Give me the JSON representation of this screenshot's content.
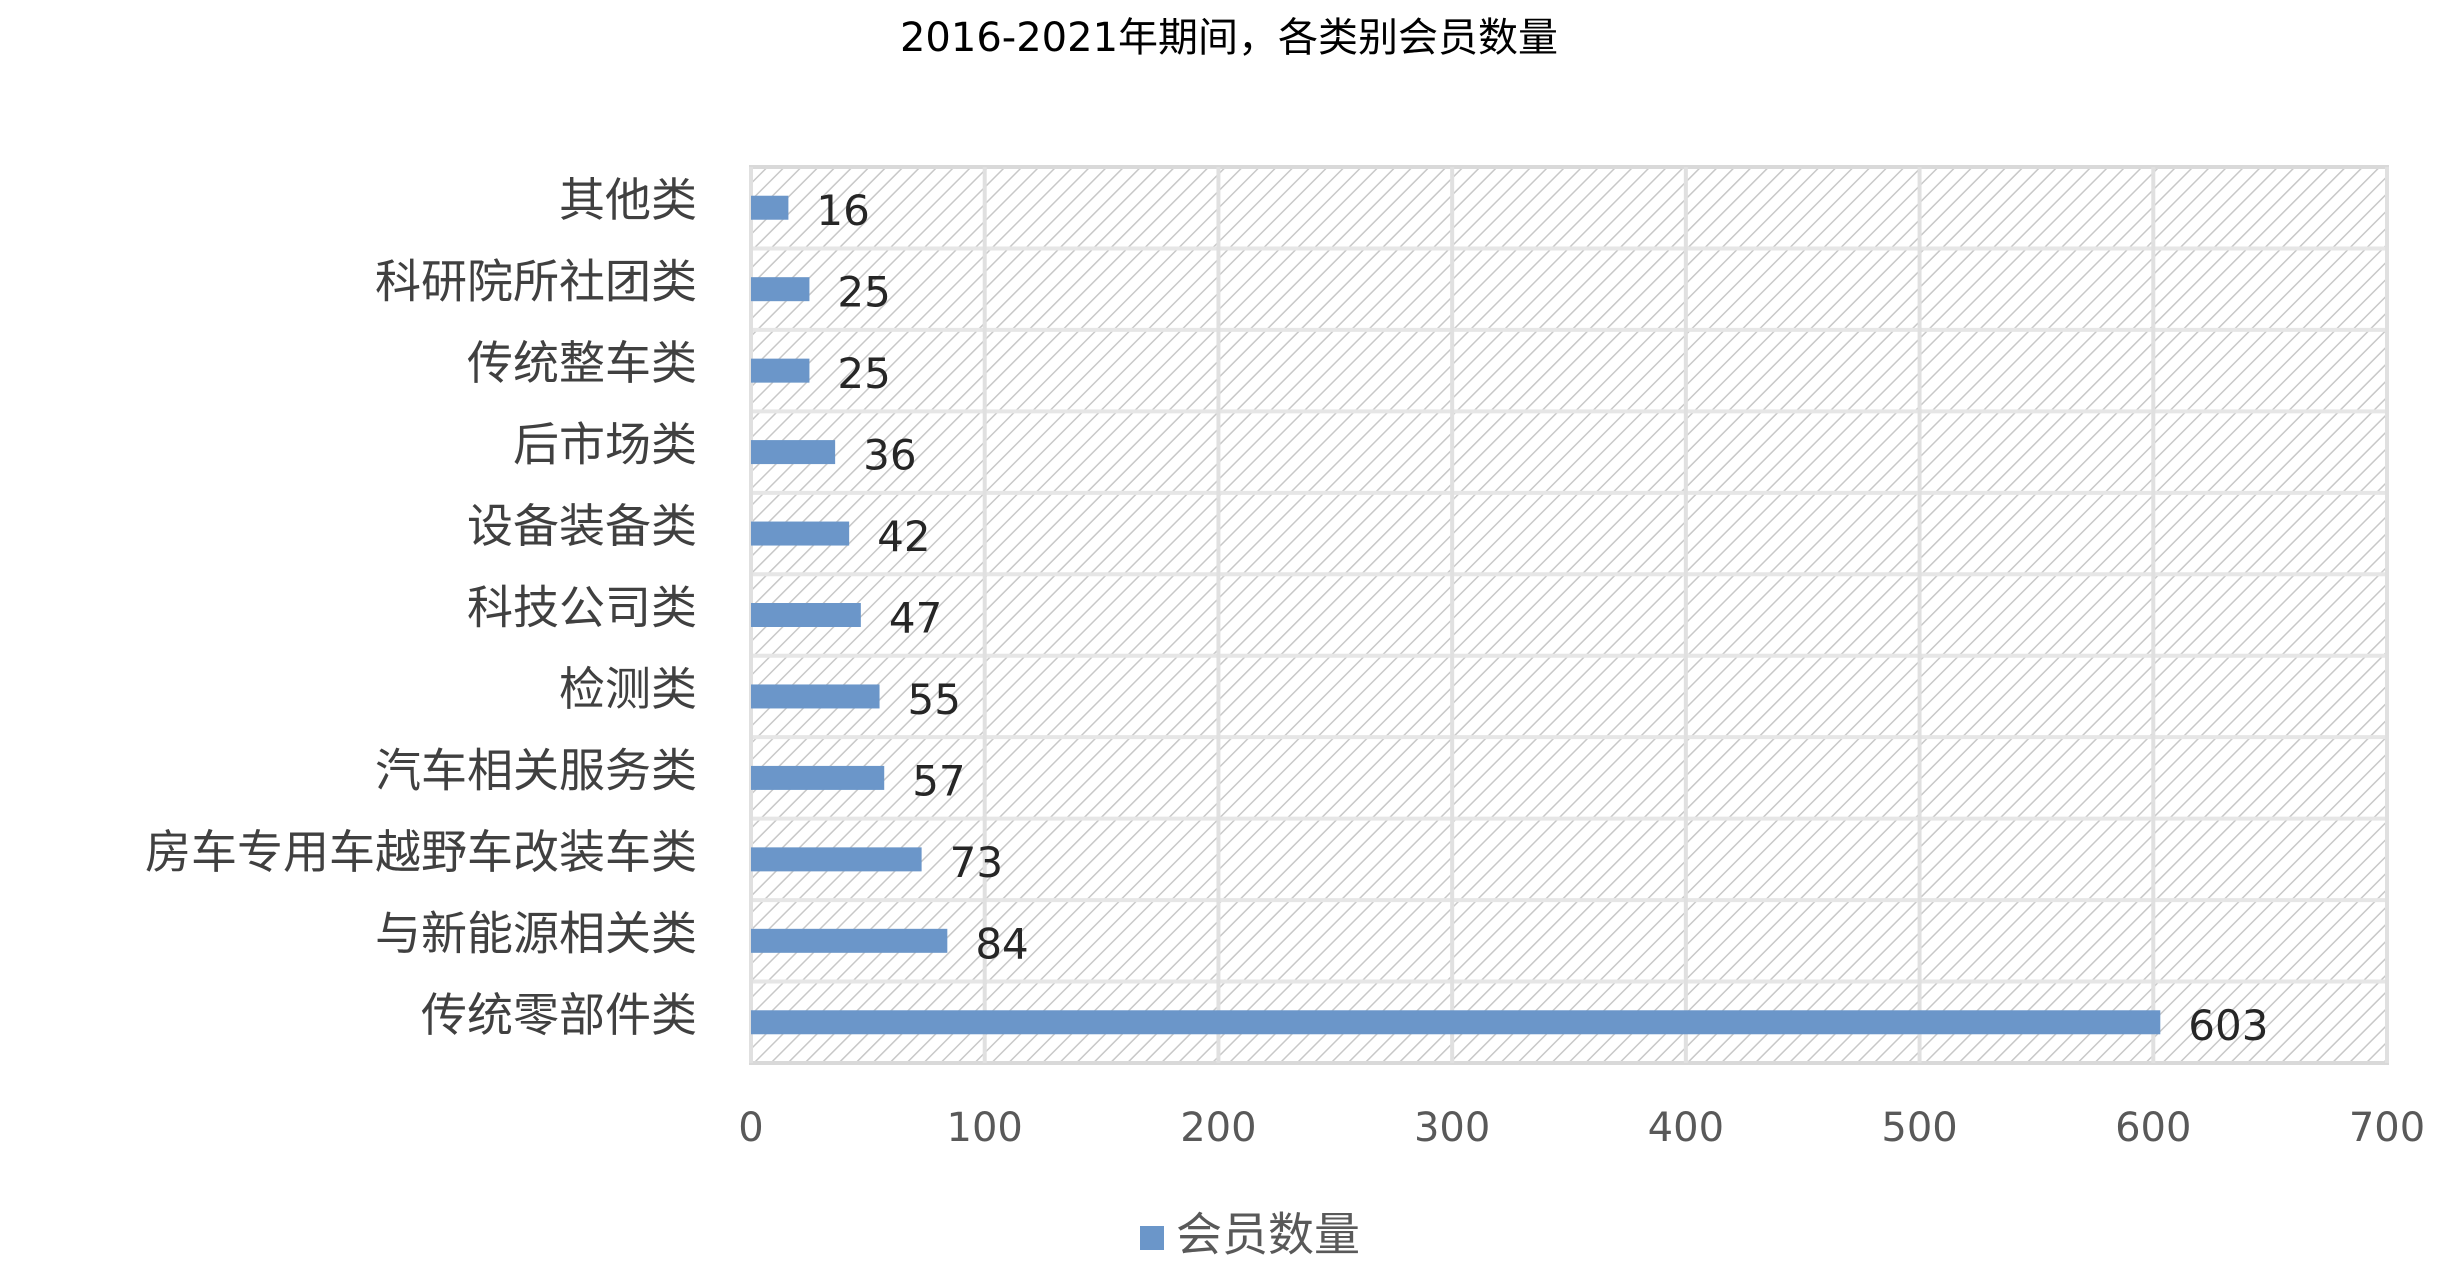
{
  "chart_data": {
    "type": "bar",
    "orientation": "horizontal",
    "title": "2016-2021年期间，各类别会员数量",
    "categories": [
      "其他类",
      "科研院所社团类",
      "传统整车类",
      "后市场类",
      "设备装备类",
      "科技公司类",
      "检测类",
      "汽车相关服务类",
      "房车专用车越野车改装车类",
      "与新能源相关类",
      "传统零部件类"
    ],
    "series": [
      {
        "name": "会员数量",
        "color": "#6b96c9",
        "values": [
          16,
          25,
          25,
          36,
          42,
          47,
          55,
          57,
          73,
          84,
          603
        ]
      }
    ],
    "xlim": [
      0,
      700
    ],
    "xticks": [
      0,
      100,
      200,
      300,
      400,
      500,
      600,
      700
    ],
    "grid": true,
    "legend": "bottom"
  }
}
